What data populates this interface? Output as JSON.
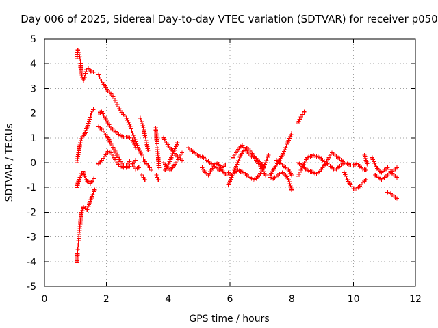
{
  "chart_data": {
    "type": "scatter",
    "title": "Day 006 of 2025, Sidereal Day-to-day VTEC variation (SDTVAR) for receiver p050",
    "xlabel": "GPS time / hours",
    "ylabel": "SDTVAR / TECUs",
    "xlim": [
      0,
      12
    ],
    "ylim": [
      -5,
      5
    ],
    "xticks": [
      0,
      2,
      4,
      6,
      8,
      10,
      12
    ],
    "yticks": [
      -5,
      -4,
      -3,
      -2,
      -1,
      0,
      1,
      2,
      3,
      4,
      5
    ],
    "grid": true,
    "marker": "+",
    "series_color": "#ff0000",
    "series": [
      {
        "name": "p050",
        "segments": [
          {
            "x": [
              1.05,
              1.08,
              1.12,
              1.16,
              1.18,
              1.22,
              1.26,
              1.3
            ],
            "y": [
              4.2,
              4.55,
              4.45,
              4.1,
              3.7,
              3.45,
              3.3,
              3.45
            ]
          },
          {
            "x": [
              1.32,
              1.36,
              1.42,
              1.5,
              1.58
            ],
            "y": [
              3.6,
              3.75,
              3.8,
              3.7,
              3.65
            ]
          },
          {
            "x": [
              1.05,
              1.08,
              1.12,
              1.16,
              1.2,
              1.26,
              1.32,
              1.38,
              1.44,
              1.5,
              1.56,
              1.62
            ],
            "y": [
              -4.05,
              -3.5,
              -2.9,
              -2.4,
              -2.0,
              -1.8,
              -1.85,
              -1.9,
              -1.7,
              -1.5,
              -1.3,
              -1.1
            ]
          },
          {
            "x": [
              1.05,
              1.1,
              1.15,
              1.2,
              1.25,
              1.3,
              1.36,
              1.42,
              1.48,
              1.55,
              1.6
            ],
            "y": [
              -1.0,
              -0.75,
              -0.6,
              -0.45,
              -0.35,
              -0.55,
              -0.7,
              -0.8,
              -0.85,
              -0.75,
              -0.65
            ]
          },
          {
            "x": [
              1.05,
              1.1,
              1.16,
              1.22,
              1.28,
              1.34,
              1.4,
              1.46,
              1.52,
              1.58
            ],
            "y": [
              0.0,
              0.4,
              0.8,
              1.05,
              1.1,
              1.3,
              1.5,
              1.75,
              2.0,
              2.15
            ]
          },
          {
            "x": [
              1.75,
              1.85,
              1.95,
              2.05,
              2.15,
              2.25,
              2.35,
              2.45,
              2.55,
              2.65,
              2.75,
              2.85,
              2.95,
              3.05,
              3.15
            ],
            "y": [
              3.55,
              3.3,
              3.1,
              2.9,
              2.8,
              2.6,
              2.35,
              2.1,
              1.95,
              1.8,
              1.55,
              1.2,
              0.85,
              0.55,
              0.3
            ]
          },
          {
            "x": [
              1.75,
              1.85,
              1.95,
              2.05,
              2.15,
              2.25,
              2.35,
              2.45,
              2.55,
              2.65,
              2.75,
              2.85,
              2.95
            ],
            "y": [
              2.0,
              2.05,
              1.85,
              1.6,
              1.4,
              1.3,
              1.2,
              1.1,
              1.05,
              1.05,
              1.0,
              0.9,
              0.6
            ]
          },
          {
            "x": [
              1.75,
              1.85,
              1.95,
              2.05,
              2.15,
              2.25,
              2.35,
              2.45,
              2.55,
              2.65,
              2.75,
              2.85,
              2.95
            ],
            "y": [
              1.45,
              1.35,
              1.2,
              1.0,
              0.75,
              0.55,
              0.3,
              0.05,
              -0.1,
              -0.2,
              -0.15,
              -0.05,
              0.1
            ]
          },
          {
            "x": [
              1.75,
              1.85,
              1.95,
              2.05,
              2.15,
              2.25,
              2.35,
              2.45,
              2.55,
              2.65,
              2.75,
              2.85,
              2.95,
              3.05
            ],
            "y": [
              -0.05,
              0.1,
              0.25,
              0.45,
              0.4,
              0.2,
              0.0,
              -0.15,
              -0.2,
              -0.1,
              0.05,
              -0.1,
              -0.25,
              -0.2
            ]
          },
          {
            "x": [
              3.1,
              3.15,
              3.2,
              3.25,
              3.3,
              3.35
            ],
            "y": [
              1.8,
              1.65,
              1.4,
              1.1,
              0.8,
              0.5
            ]
          },
          {
            "x": [
              3.2,
              3.25,
              3.3,
              3.35,
              3.4,
              3.45
            ],
            "y": [
              0.15,
              0.05,
              -0.05,
              -0.1,
              -0.2,
              -0.3
            ]
          },
          {
            "x": [
              3.15,
              3.2,
              3.25
            ],
            "y": [
              -0.5,
              -0.6,
              -0.7
            ]
          },
          {
            "x": [
              3.6,
              3.62,
              3.65,
              3.68,
              3.7
            ],
            "y": [
              1.4,
              1.0,
              0.6,
              0.2,
              -0.2
            ]
          },
          {
            "x": [
              3.62,
              3.65,
              3.68
            ],
            "y": [
              -0.5,
              -0.6,
              -0.7
            ]
          },
          {
            "x": [
              3.85,
              3.95,
              4.05,
              4.15,
              4.25,
              4.35,
              4.45
            ],
            "y": [
              1.0,
              0.8,
              0.6,
              0.5,
              0.3,
              0.2,
              0.1
            ]
          },
          {
            "x": [
              3.85,
              3.95,
              4.05,
              4.15,
              4.25,
              4.35,
              4.45
            ],
            "y": [
              0.0,
              -0.15,
              -0.3,
              -0.2,
              0.0,
              0.2,
              0.4
            ]
          },
          {
            "x": [
              3.9,
              4.0,
              4.1,
              4.2,
              4.3
            ],
            "y": [
              -0.3,
              -0.1,
              0.2,
              0.5,
              0.8
            ]
          },
          {
            "x": [
              4.65,
              4.75,
              4.85,
              4.95,
              5.05,
              5.15,
              5.25,
              5.35,
              5.45,
              5.55,
              5.65,
              5.75,
              5.85
            ],
            "y": [
              0.6,
              0.5,
              0.4,
              0.3,
              0.25,
              0.2,
              0.1,
              0.0,
              -0.1,
              -0.2,
              -0.3,
              -0.2,
              -0.1
            ]
          },
          {
            "x": [
              5.1,
              5.2,
              5.3,
              5.4,
              5.5,
              5.6,
              5.7,
              5.8,
              5.9
            ],
            "y": [
              -0.2,
              -0.4,
              -0.5,
              -0.3,
              -0.1,
              0.0,
              -0.2,
              -0.4,
              -0.5
            ]
          },
          {
            "x": [
              5.95,
              6.05,
              6.15,
              6.25,
              6.35,
              6.45,
              6.55,
              6.65,
              6.75,
              6.85,
              6.95,
              7.05,
              7.15
            ],
            "y": [
              -0.9,
              -0.6,
              -0.3,
              0.0,
              0.3,
              0.5,
              0.6,
              0.5,
              0.3,
              0.1,
              -0.1,
              -0.3,
              -0.5
            ]
          },
          {
            "x": [
              5.95,
              6.05,
              6.15,
              6.25,
              6.35,
              6.45,
              6.55,
              6.65,
              6.75,
              6.85,
              6.95,
              7.05,
              7.15,
              7.25
            ],
            "y": [
              -0.4,
              -0.5,
              -0.4,
              -0.3,
              -0.35,
              -0.4,
              -0.5,
              -0.6,
              -0.7,
              -0.65,
              -0.5,
              -0.3,
              0.0,
              0.3
            ]
          },
          {
            "x": [
              6.1,
              6.2,
              6.3,
              6.4,
              6.5,
              6.6,
              6.7,
              6.8,
              6.9,
              7.0,
              7.1
            ],
            "y": [
              0.2,
              0.4,
              0.6,
              0.7,
              0.55,
              0.35,
              0.25,
              0.2,
              0.1,
              0.0,
              -0.2
            ]
          },
          {
            "x": [
              7.3,
              7.4,
              7.5,
              7.6,
              7.7,
              7.8,
              7.9,
              8.0
            ],
            "y": [
              -0.5,
              -0.3,
              -0.1,
              0.1,
              0.3,
              0.6,
              0.9,
              1.2
            ]
          },
          {
            "x": [
              7.3,
              7.4,
              7.5,
              7.6,
              7.7,
              7.8,
              7.9,
              8.0
            ],
            "y": [
              -0.6,
              -0.65,
              -0.55,
              -0.45,
              -0.4,
              -0.5,
              -0.7,
              -1.1
            ]
          },
          {
            "x": [
              7.5,
              7.6,
              7.7,
              7.8,
              7.9,
              8.0
            ],
            "y": [
              0.1,
              0.0,
              -0.1,
              -0.2,
              -0.3,
              -0.5
            ]
          },
          {
            "x": [
              8.2,
              8.25,
              8.3,
              8.35,
              8.4
            ],
            "y": [
              1.6,
              1.75,
              1.85,
              1.95,
              2.05
            ]
          },
          {
            "x": [
              8.2,
              8.3,
              8.4,
              8.5,
              8.6,
              8.7,
              8.8,
              8.9,
              9.0,
              9.1,
              9.2,
              9.3,
              9.4,
              9.5,
              9.6,
              9.7
            ],
            "y": [
              -0.55,
              -0.3,
              0.0,
              0.2,
              0.25,
              0.3,
              0.25,
              0.2,
              0.1,
              0.0,
              -0.1,
              -0.2,
              -0.3,
              -0.2,
              -0.1,
              0.0
            ]
          },
          {
            "x": [
              8.2,
              8.3,
              8.4,
              8.5,
              8.6,
              8.7,
              8.8,
              8.9,
              9.0,
              9.1,
              9.2,
              9.3,
              9.4,
              9.5,
              9.6,
              9.7
            ],
            "y": [
              0.0,
              -0.1,
              -0.2,
              -0.3,
              -0.35,
              -0.4,
              -0.45,
              -0.35,
              -0.2,
              0.0,
              0.2,
              0.4,
              0.3,
              0.2,
              0.1,
              0.0
            ]
          },
          {
            "x": [
              9.7,
              9.8,
              9.9,
              10.0,
              10.1,
              10.2,
              10.3,
              10.4
            ],
            "y": [
              -0.4,
              -0.7,
              -0.9,
              -1.05,
              -1.05,
              -0.95,
              -0.8,
              -0.7
            ]
          },
          {
            "x": [
              9.7,
              9.8,
              9.9,
              10.0,
              10.1,
              10.2,
              10.3,
              10.4
            ],
            "y": [
              0.0,
              -0.05,
              -0.1,
              -0.1,
              -0.05,
              -0.15,
              -0.25,
              -0.3
            ]
          },
          {
            "x": [
              10.35,
              10.4,
              10.45
            ],
            "y": [
              0.3,
              0.1,
              -0.1
            ]
          },
          {
            "x": [
              10.6,
              10.7,
              10.8,
              10.9,
              11.0,
              11.1,
              11.2,
              11.3,
              11.4
            ],
            "y": [
              0.2,
              -0.1,
              -0.3,
              -0.4,
              -0.3,
              -0.2,
              -0.35,
              -0.5,
              -0.6
            ]
          },
          {
            "x": [
              10.7,
              10.8,
              10.9,
              11.0,
              11.1,
              11.2,
              11.3,
              11.4
            ],
            "y": [
              -0.5,
              -0.6,
              -0.7,
              -0.6,
              -0.5,
              -0.4,
              -0.3,
              -0.2
            ]
          },
          {
            "x": [
              11.1,
              11.2,
              11.3,
              11.4
            ],
            "y": [
              -1.2,
              -1.25,
              -1.35,
              -1.45
            ]
          }
        ]
      }
    ]
  }
}
